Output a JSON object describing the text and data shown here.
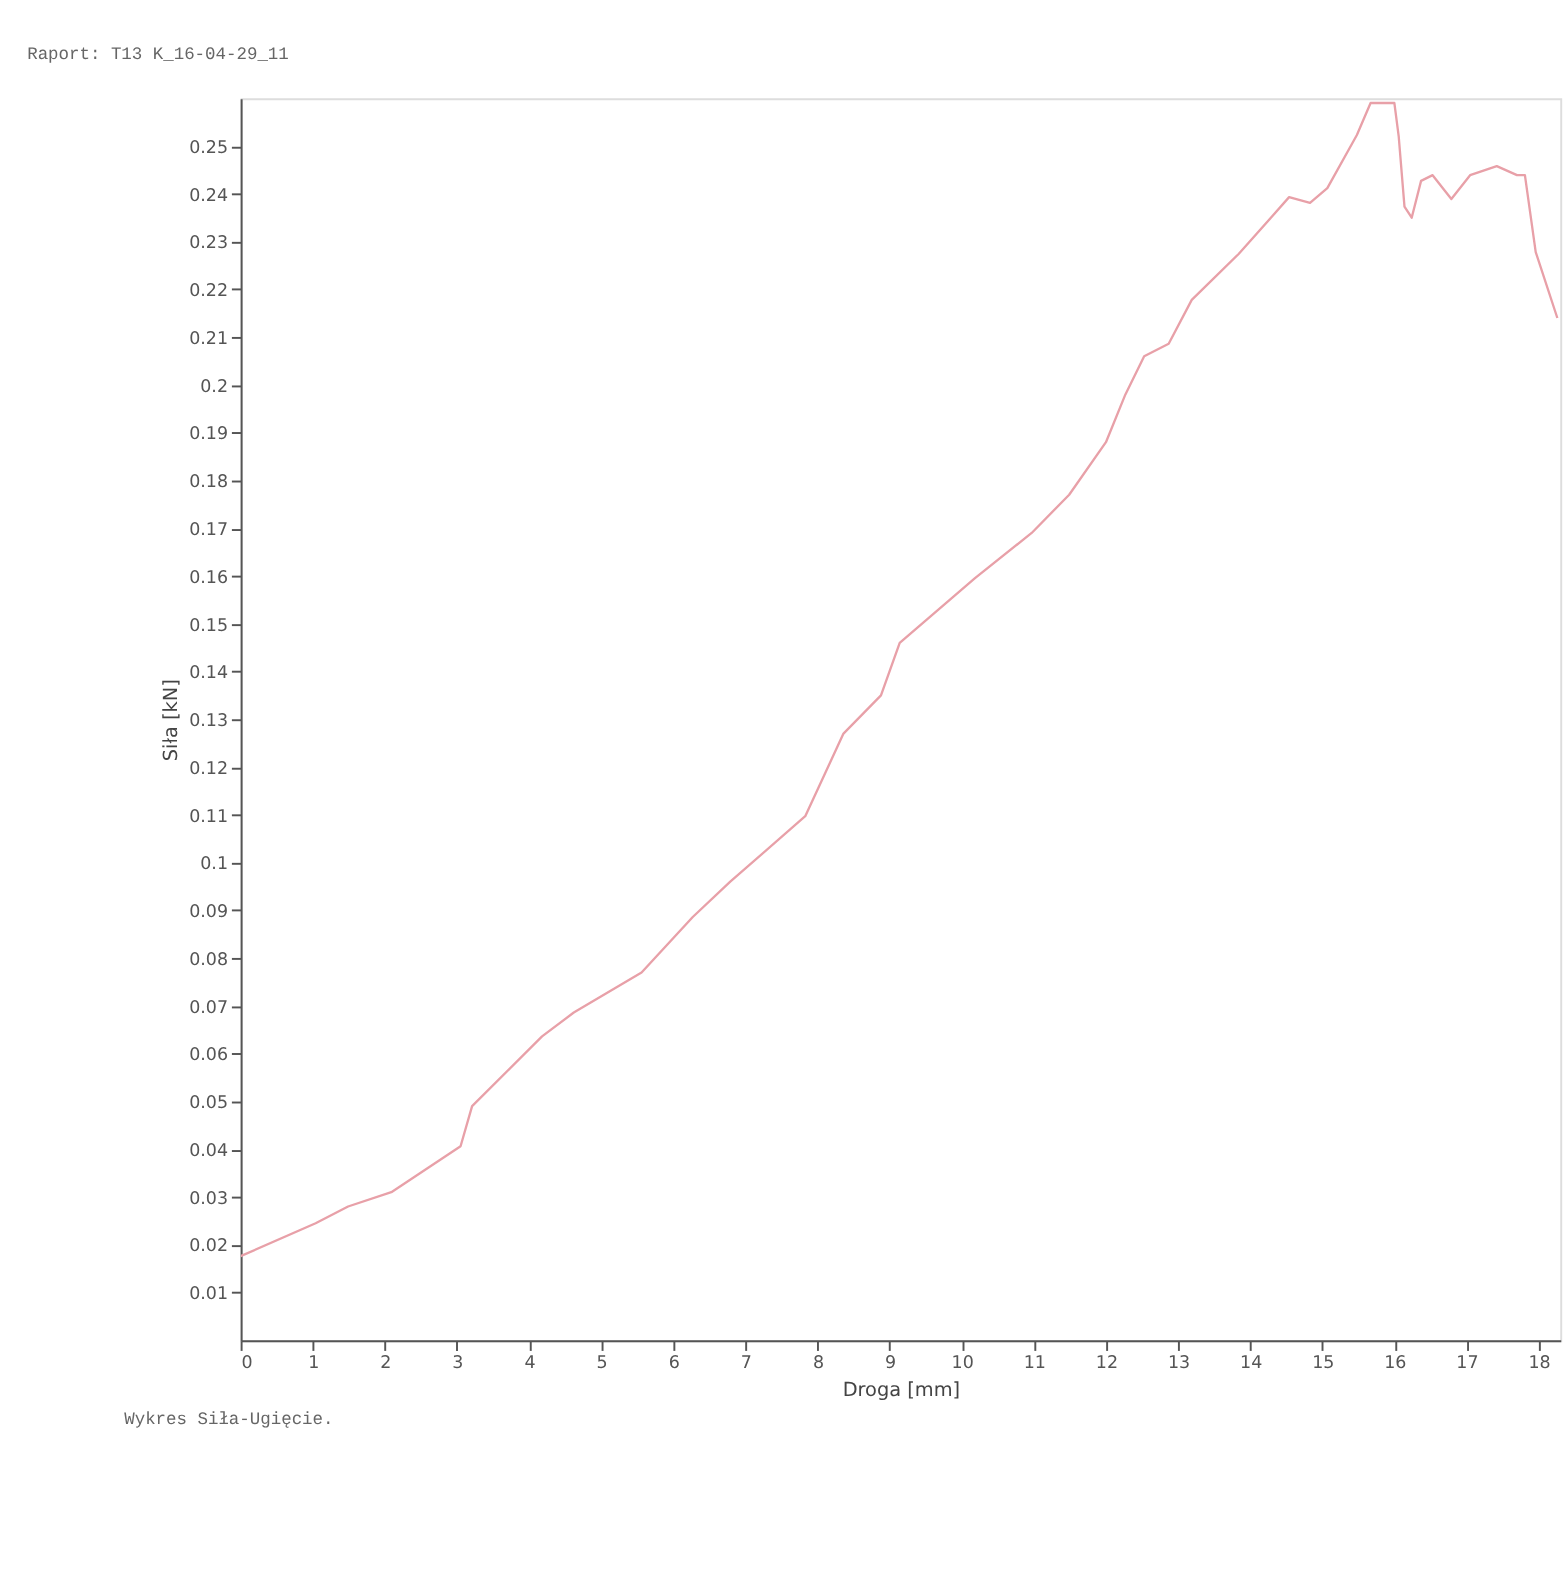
{
  "chart_data": {
    "type": "line",
    "title": "Raport: T13 K_16-04-29_11",
    "xlabel": "Droga [mm]",
    "ylabel": "Siła [kN]",
    "annotations": [
      "Wykres Siła-Ugięcie."
    ],
    "x": [
      0,
      1.04,
      1.49,
      2.09,
      3.05,
      3.21,
      4.18,
      4.62,
      5.56,
      6.27,
      6.79,
      7.83,
      8.36,
      8.88,
      9.14,
      10.18,
      10.97,
      11.49,
      12.0,
      12.27,
      12.53,
      12.87,
      13.19,
      13.84,
      14.54,
      14.83,
      15.07,
      15.48,
      15.67,
      16.0,
      16.06,
      16.14,
      16.24,
      16.37,
      16.53,
      16.79,
      17.05,
      17.42,
      17.7,
      17.81,
      17.96,
      18.26
    ],
    "series": [
      {
        "color": "#e8a0a8",
        "values": [
          0.0176,
          0.0245,
          0.028,
          0.031,
          0.0406,
          0.049,
          0.0636,
          0.0686,
          0.077,
          0.0886,
          0.096,
          0.1097,
          0.127,
          0.135,
          0.146,
          0.1595,
          0.169,
          0.177,
          0.188,
          0.198,
          0.206,
          0.2086,
          0.2178,
          0.2274,
          0.2393,
          0.2381,
          0.2412,
          0.2523,
          0.259,
          0.259,
          0.252,
          0.2373,
          0.235,
          0.2427,
          0.2439,
          0.2389,
          0.2439,
          0.2458,
          0.2439,
          0.2439,
          0.2278,
          0.214
        ]
      }
    ],
    "xlim": [
      0,
      18.3
    ],
    "xticks": [
      0,
      1,
      2,
      3,
      4,
      5,
      6,
      7,
      8,
      9,
      10,
      11,
      12,
      13,
      14,
      15,
      16,
      17,
      18
    ],
    "ylim": [
      0,
      0.26
    ],
    "yticks": [
      0.01,
      0.02,
      0.03,
      0.04,
      0.05,
      0.06,
      0.07,
      0.08,
      0.09,
      0.1,
      0.11,
      0.12,
      0.13,
      0.14,
      0.15,
      0.16,
      0.17,
      0.18,
      0.19,
      0.2,
      0.21,
      0.22,
      0.23,
      0.24,
      0.25
    ],
    "grid": false,
    "marker": "none",
    "line_style": "solid"
  }
}
